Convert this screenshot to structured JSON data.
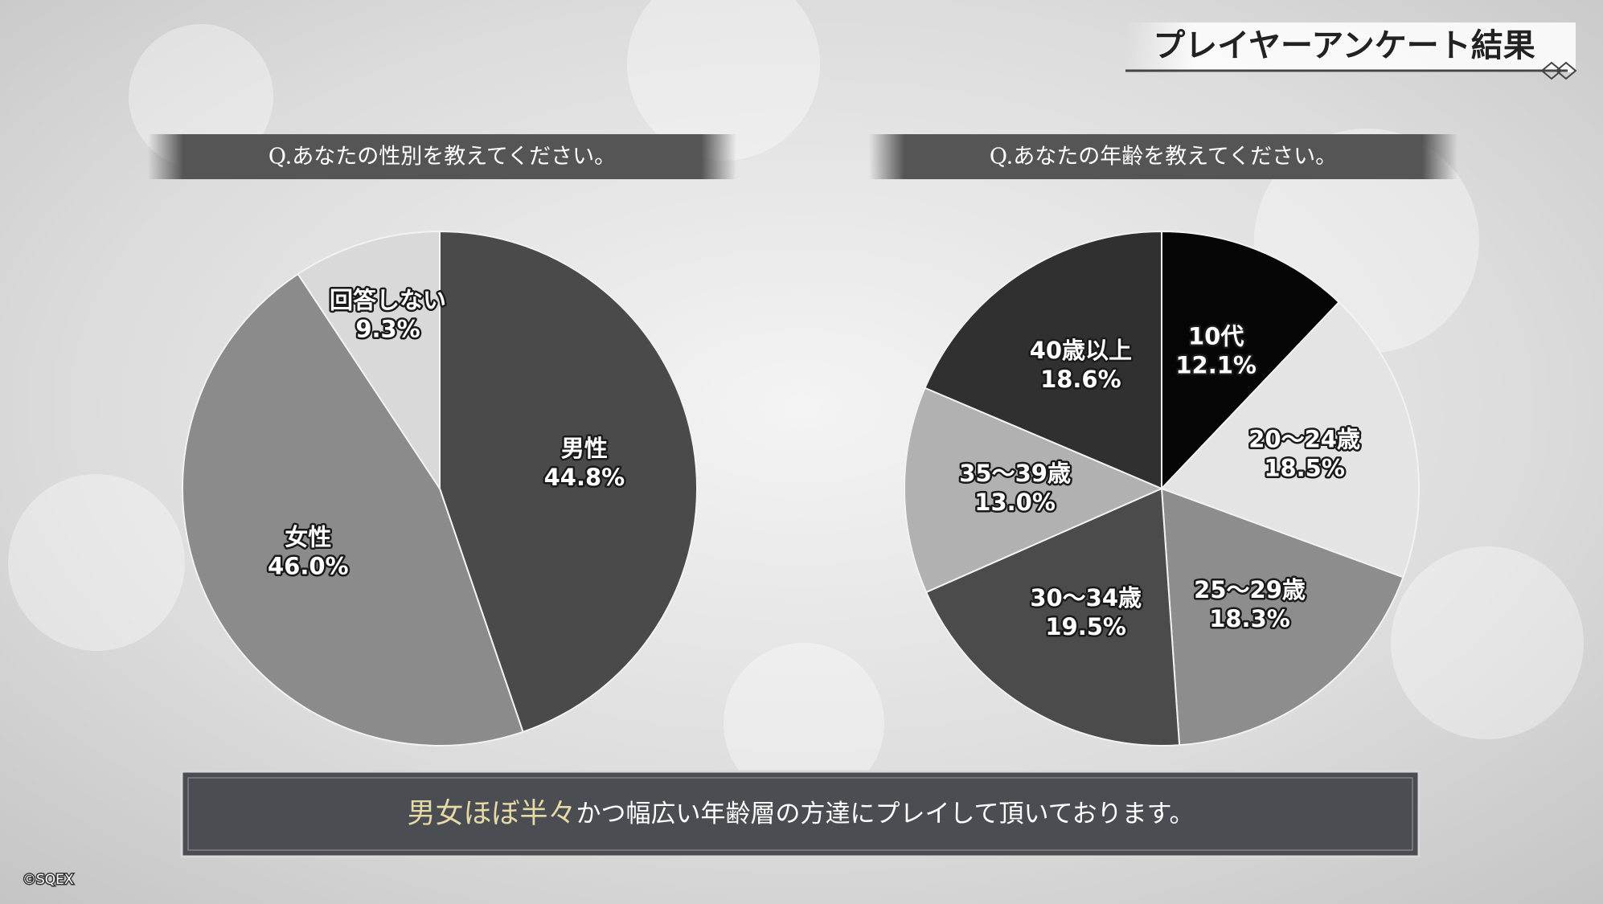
{
  "header": {
    "title": "プレイヤーアンケート結果"
  },
  "chart_data": [
    {
      "type": "pie",
      "title": "Q.あなたの性別を教えてください。",
      "categories": [
        "男性",
        "女性",
        "回答しない"
      ],
      "values": [
        44.8,
        46.0,
        9.3
      ],
      "value_labels": [
        "44.8%",
        "46.0%",
        "9.3%"
      ],
      "colors": [
        "#4a4a4a",
        "#8b8b8b",
        "#d9d9d9"
      ]
    },
    {
      "type": "pie",
      "title": "Q.あなたの年齢を教えてください。",
      "categories": [
        "10代",
        "20〜24歳",
        "25〜29歳",
        "30〜34歳",
        "35〜39歳",
        "40歳以上"
      ],
      "values": [
        12.1,
        18.5,
        18.3,
        19.5,
        13.0,
        18.6
      ],
      "value_labels": [
        "12.1%",
        "18.5%",
        "18.3%",
        "19.5%",
        "13.0%",
        "18.6%"
      ],
      "colors": [
        "#050505",
        "#e4e4e4",
        "#8d8d8d",
        "#4b4b4b",
        "#b1b1b1",
        "#303030"
      ]
    }
  ],
  "footer": {
    "highlight": "男女ほぼ半々",
    "text": "かつ幅広い年齢層の方達にプレイして頂いております。"
  },
  "copyright": "©SQEX"
}
